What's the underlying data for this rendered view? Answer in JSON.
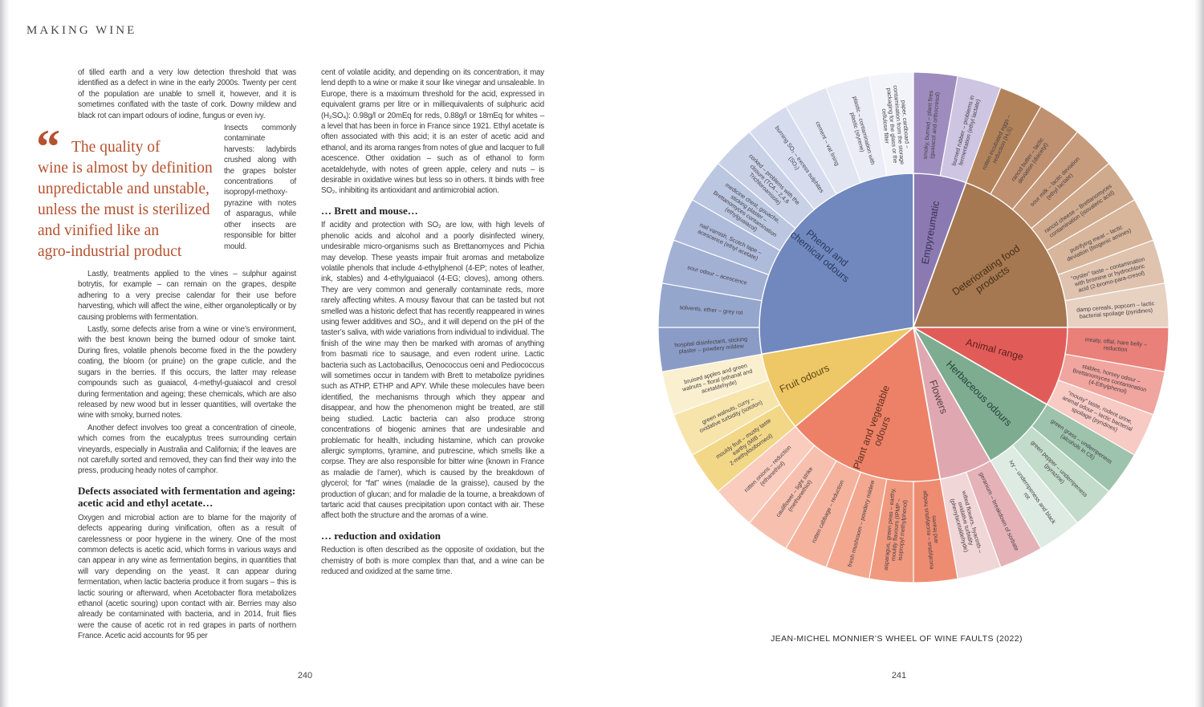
{
  "book": {
    "running_head": "MAKING WINE",
    "left_page": {
      "page_number": "240",
      "pull_quote": {
        "mark": "“",
        "lines": [
          "The quality of",
          "wine is almost by definition",
          "unpredictable and unstable,",
          "unless the must is sterilized",
          "and vinified like an",
          "agro-industrial product"
        ]
      },
      "column1": {
        "p1": "of tilled earth and a very low detection threshold that was identified as a defect in wine in the early 2000s. Twenty per cent of the population are unable to smell it, however, and it is sometimes conflated with the taste of cork. Downy mildew and black rot can impart odours of iodine, fungus or even ivy.",
        "side": "Insects commonly contaminate harvests: ladybirds crushed along with the grapes bolster concentrations of isopropyl-methoxy-pyrazine with notes of asparagus, while other insects are responsible for bitter mould.",
        "p2": "Lastly, treatments applied to the vines – sulphur against botrytis, for example – can remain on the grapes, despite adhering to a very precise calendar for their use before harvesting, which will affect the wine, either organoleptically or by causing problems with fermentation.",
        "p3": "Lastly, some defects arise from a wine or vine’s environment, with the best known being the burned odour of smoke taint. During fires, volatile phenols become fixed in the the powdery coating, the bloom (or pruine) on the grape cuticle, and the sugars in the berries. If this occurs, the latter may release compounds such as guaiacol, 4-methyl-guaiacol and cresol during fermentation and ageing; these chemicals, which are also released by new wood but in lesser quantities, will overtake the wine with smoky, burned notes.",
        "p4": "Another defect involves too great a concentration of cineole, which comes from the eucalyptus trees surrounding certain vineyards, especially in Australia and California; if the leaves are not carefully sorted and removed, they can find their way into the press, producing heady notes of camphor.",
        "h1": "Defects associated with fermentation and ageing: acetic acid and ethyl acetate…",
        "p5": "Oxygen and microbial action are to blame for the majority of defects appearing during vinification, often as a result of carelessness or poor hygiene in the winery. One of the most common defects is acetic acid, which forms in various ways and can appear in any wine as fermentation begins, in quantities that will vary depending on the yeast. It can appear during fermentation, when lactic bacteria produce it from sugars – this is lactic souring or afterward, when Acetobacter flora metabolizes ethanol (acetic souring) upon contact with air. Berries may also already be contaminated with bacteria, and in 2014, fruit flies were the cause of acetic rot in red grapes in parts of northern France. Acetic acid accounts for 95 per"
      },
      "column2": {
        "p1": "cent of volatile acidity, and depending on its concentration, it may lend depth to a wine or make it sour like vinegar and unsaleable. In Europe, there is a maximum threshold for the acid, expressed in equivalent grams per litre or in milliequivalents of sulphuric acid (H₂SO₄): 0.98g/l or 20mEq for reds, 0.88g/l or 18mEq for whites – a level that has been in force in France since 1921. Ethyl acetate is often associated with this acid; it is an ester of acetic acid and ethanol, and its aroma ranges from notes of glue and lacquer to full acescence. Other oxidation – such as of ethanol to form acetaldehyde, with notes of green apple, celery and nuts – is desirable in oxidative wines but less so in others. It binds with free SO₂, inhibiting its antioxidant and antimicrobial action.",
        "h1": "… Brett and mouse…",
        "p2": "If acidity and protection with SO₂ are low, with high levels of phenolic acids and alcohol and a poorly disinfected winery, undesirable micro-organisms such as Brettanomyces and Pichia may develop. These yeasts impair fruit aromas and metabolize volatile phenols that include 4-ethylphenol (4-EP; notes of leather, ink, stables) and 4-ethylguaiacol (4-EG; cloves), among others. They are very common and generally contaminate reds, more rarely affecting whites. A mousy flavour that can be tasted but not smelled was a historic defect that has recently reappeared in wines using fewer additives and SO₂, and it will depend on the pH of the taster’s saliva, with wide variations from individual to individual. The finish of the wine may then be marked with aromas of anything from basmati rice to sausage, and even rodent urine. Lactic bacteria such as Lactobacillus, Oenococcus oeni and Pediococcus will sometimes occur in tandem with Brett to metabolize pyridines such as ATHP, ETHP and APY. While these molecules have been identified, the mechanisms through which they appear and disappear, and how the phenomenon might be treated, are still being studied. Lactic bacteria can also produce strong concentrations of biogenic amines that are undesirable and problematic for health, including histamine, which can provoke allergic symptoms, tyramine, and putrescine, which smells like a corpse. They are also responsible for bitter wine (known in France as maladie de l’amer), which is caused by the breakdown of glycerol; for “fat” wines (maladie de la graisse), caused by the production of glucan; and for maladie de la tourne, a breakdown of tartaric acid that causes precipitation upon contact with air. These affect both the structure and the aromas of a wine.",
        "h2": "… reduction and oxidation",
        "p3": "Reduction is often described as the opposite of oxidation, but the chemistry of both is more complex than that, and a wine can be reduced and oxidized at the same time."
      }
    },
    "right_page": {
      "page_number": "241"
    }
  },
  "chart_data": {
    "type": "pie",
    "subtype": "sunburst-wheel",
    "title": "JEAN-MICHEL MONNIER’S WHEEL OF WINE FAULTS (2022)",
    "segment_angle_deg": 10,
    "legend_position": "none",
    "categories": [
      {
        "label": "Empyreumatic",
        "label_lines": [
          "Empyreumatic"
        ],
        "color": "#8b7ab2",
        "label_color": "#3a3153",
        "items": [
          {
            "label": "smoky, burned – plant fires (guaiacol and orthocresol)",
            "color": "#9e8cbe"
          },
          {
            "label": "burned rubber – problems in fermentation (ethyl lactate)",
            "color": "#cdc5e2"
          }
        ]
      },
      {
        "label": "Deteriorating food products",
        "label_lines": [
          "Deteriorating food",
          "products"
        ],
        "color": "#a57851",
        "label_color": "#452f18",
        "items": [
          {
            "label": "rotten incubated eggs – reduction (H₂S)",
            "color": "#b2835b"
          },
          {
            "label": "rancid butter – lactic deviation (diacetyl)",
            "color": "#bf9170"
          },
          {
            "label": "sour milk – lactic deviation (ethyl lactate)",
            "color": "#c79c7d"
          },
          {
            "label": "rancid cheese – Brettanomyces contamination (isovaleric acid)",
            "color": "#cfaa8d"
          },
          {
            "label": "putrifying meat – lactic deviation (biogenic amines)",
            "color": "#d7b69c"
          },
          {
            "label": "“oyster” taste – contamination with bromine or hydrochloric acid (2-bromo-para-cresol)",
            "color": "#dfc3ae"
          },
          {
            "label": "damp cereals, popcorn – lactic bacterial spoilage (pyridines)",
            "color": "#e7d1c1"
          }
        ]
      },
      {
        "label": "Animal range",
        "label_lines": [
          "Animal range"
        ],
        "color": "#e15c58",
        "label_color": "#5e1f1e",
        "items": [
          {
            "label": "meaty, offal, hare belly – reduction",
            "color": "#e9807a"
          },
          {
            "label": "stables, horsey odour – Brettanomyces contamination (4-Ethylphenol)",
            "color": "#f0a59e"
          },
          {
            "label": "“mousy” taste, rodent urine, animal odour – lactic bacterial spoilage (pyridines)",
            "color": "#f7cac3"
          }
        ]
      },
      {
        "label": "Herbaceous odours",
        "label_lines": [
          "Herbaceous odours"
        ],
        "color": "#7dac91",
        "label_color": "#27433a",
        "items": [
          {
            "label": "green grass – underripeness (alcohols in C6)",
            "color": "#9dc3ac"
          },
          {
            "label": "green pepper – underripeness (pyrazine)",
            "color": "#c2dbca"
          },
          {
            "label": "ivy – underripeness and black rot",
            "color": "#ddebe2"
          }
        ]
      },
      {
        "label": "Flowers",
        "label_lines": [
          "Flowers"
        ],
        "color": "#dfa8b0",
        "label_color": "#573f44",
        "items": [
          {
            "label": "geranium – breakdown of sorbate",
            "color": "#e4b2b7"
          },
          {
            "label": "wilted flowers, hyacinth – oxidative turbidity (phenylacetaldehyde)",
            "color": "#f1d6d7"
          }
        ]
      },
      {
        "label": "Plant and vegetable odours",
        "label_lines": [
          "Plant and vegetable",
          "odours"
        ],
        "color": "#ed8167",
        "label_color": "#5f3222",
        "items": [
          {
            "label": "eucalyptus – eucalyptus hedge and leaves",
            "color": "#ee8c71"
          },
          {
            "label": "asparagus, green peas – earthy, mouldy flavours (IPMP – isopropyl methylphenol)",
            "color": "#f0997f"
          },
          {
            "label": "fresh mushroom – powdery mildew",
            "color": "#f3a78e"
          },
          {
            "label": "rotten cabbage – reduction",
            "color": "#f5b39e"
          },
          {
            "label": "cauliflower – light strike (methanethiol)",
            "color": "#f7c0ae"
          },
          {
            "label": "rotten onions – reduction (ethanethiol)",
            "color": "#f9ccbd"
          }
        ]
      },
      {
        "label": "Fruit odours",
        "label_lines": [
          "Fruit odours"
        ],
        "color": "#eec766",
        "label_color": "#5c4716",
        "items": [
          {
            "label": "mouldy fruit – musty taste earthy (MIB – 2-methylisoborneol)",
            "color": "#f2d787"
          },
          {
            "label": "green walnuts, curry – oxidative turbidity (sotolon)",
            "color": "#f6e4ab"
          },
          {
            "label": "bruised apples and green walnuts – floral (ethanal and acetaldehyde)",
            "color": "#faf0cf"
          }
        ]
      },
      {
        "label": "Phenol and chemical odours",
        "label_lines": [
          "Phenol and",
          "chemical odours"
        ],
        "color": "#7088be",
        "label_color": "#2c3a5e",
        "items": [
          {
            "label": "hospital disinfectant, sticking plaster – powdery mildew",
            "color": "#8a9cc6"
          },
          {
            "label": "solvents, ether – grey rot",
            "color": "#95a6cd"
          },
          {
            "label": "sour odour – acescence",
            "color": "#a2b0d4"
          },
          {
            "label": "nail varnish, Scotch tape – acescence (ethyl acetate)",
            "color": "#aebbda"
          },
          {
            "label": "medicine chest, gouache, sticking plaster – Brettanomyces contamination (ethylguaiacol)",
            "color": "#bbc7e0"
          },
          {
            "label": "corked – problems with the closure (TCA – 2,4,6 Trichloroanisole)",
            "color": "#c9d1e7"
          },
          {
            "label": "burning SO₂ – excess sulphites (SO₂)",
            "color": "#d6dcee"
          },
          {
            "label": "cement – vat lining",
            "color": "#e1e5f1"
          },
          {
            "label": "plastic – contamination with plastic (styrene)",
            "color": "#eaecf6"
          },
          {
            "label": "paper, cardboard – contamination from the storage packaging for the glass or the cellulose filter",
            "color": "#f3f4fa"
          }
        ]
      }
    ]
  }
}
